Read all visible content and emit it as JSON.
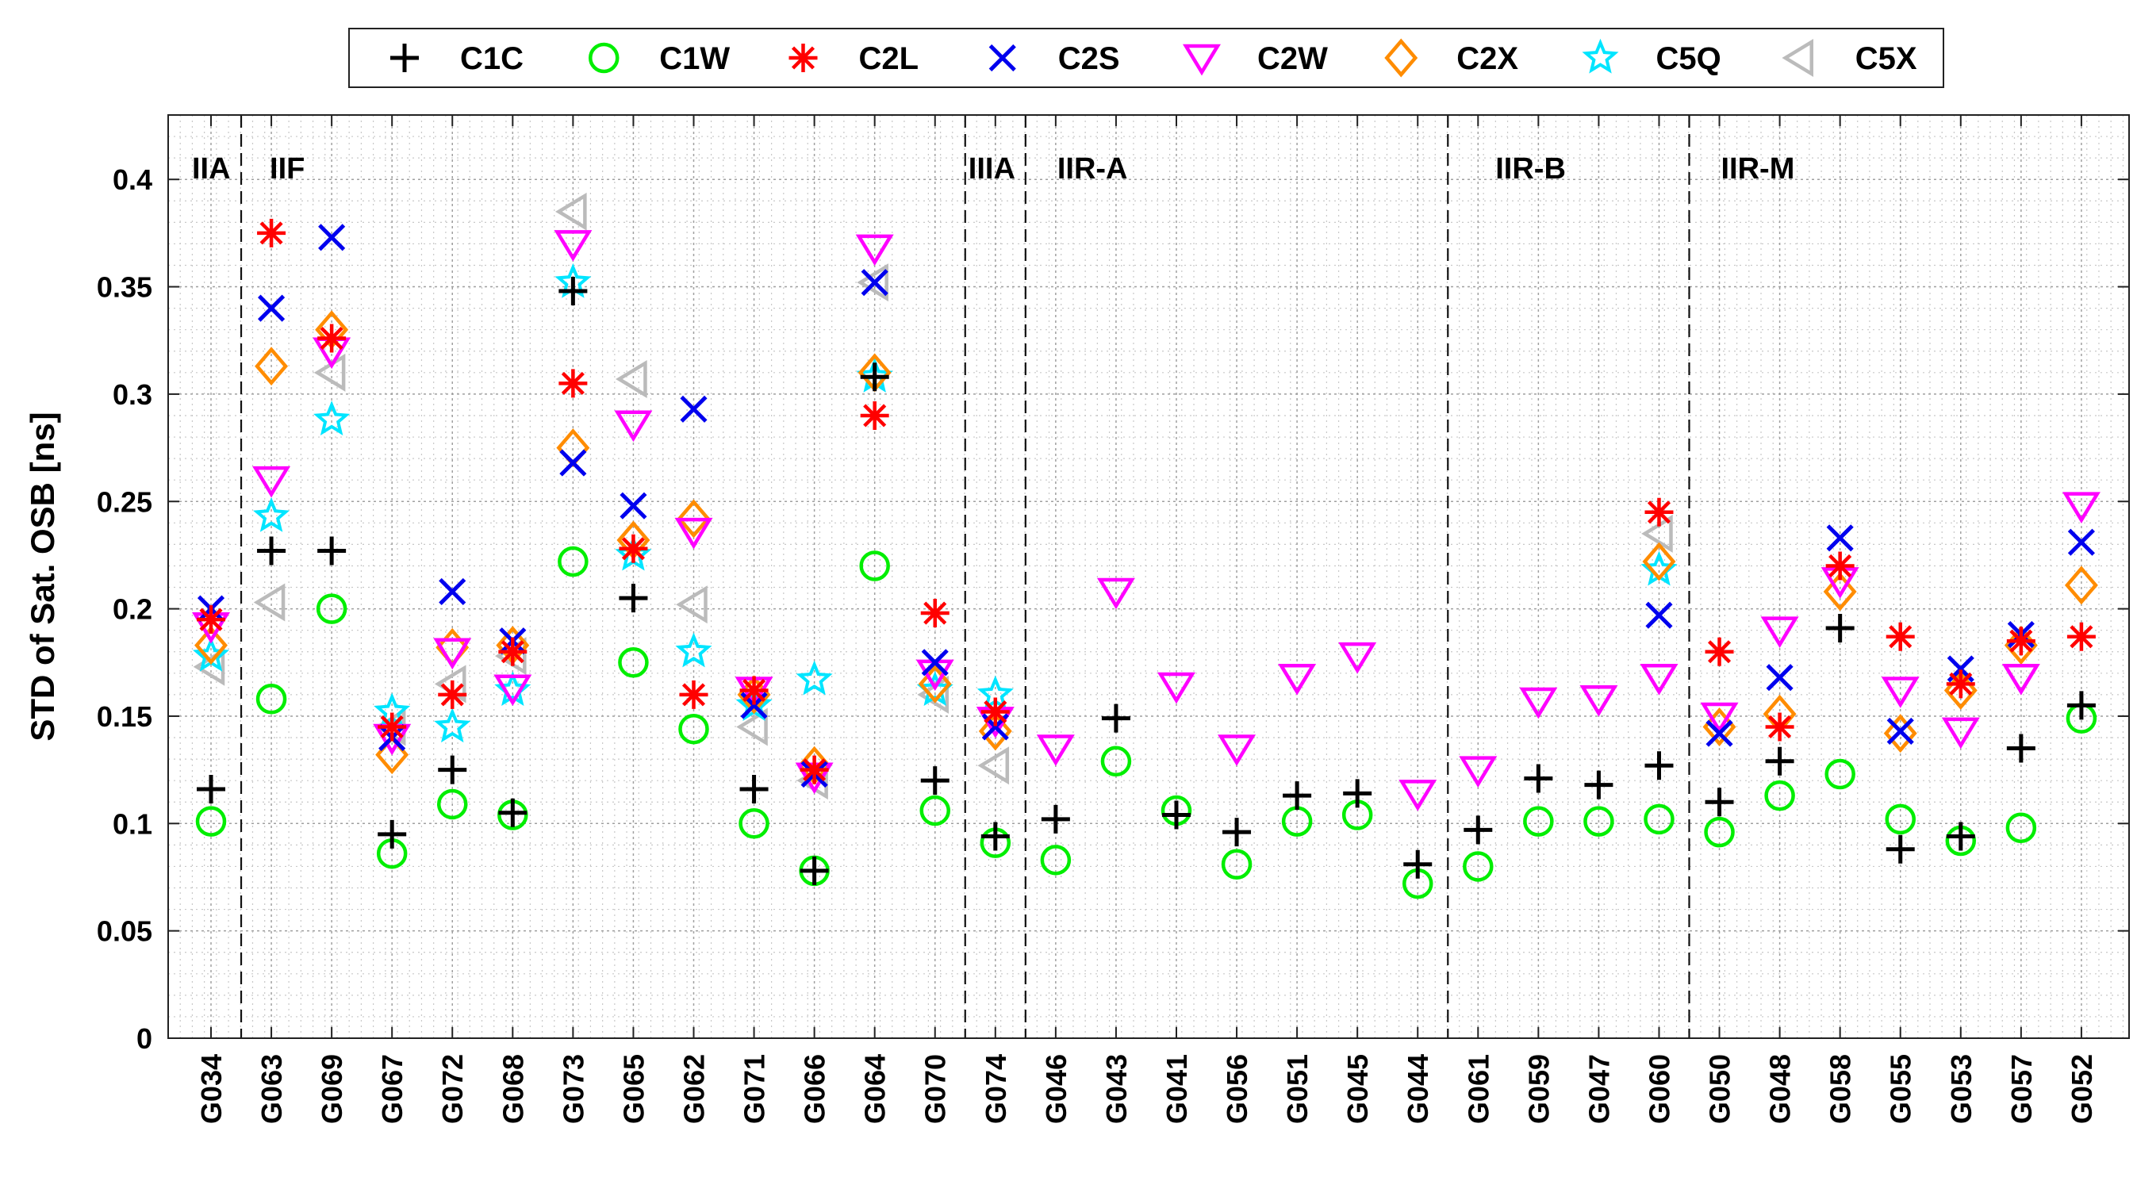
{
  "chart_data": {
    "type": "scatter",
    "title": "",
    "xlabel": "",
    "ylabel": "STD of Sat. OSB [ns]",
    "ylim": [
      0,
      0.43
    ],
    "yticks": [
      0,
      0.05,
      0.1,
      0.15,
      0.2,
      0.25,
      0.3,
      0.35,
      0.4
    ],
    "ytick_labels": [
      "0",
      "0.05",
      "0.1",
      "0.15",
      "0.2",
      "0.25",
      "0.3",
      "0.35",
      "0.4"
    ],
    "grid": true,
    "legend_position": "top-center",
    "categories": [
      "G034",
      "G063",
      "G069",
      "G067",
      "G072",
      "G068",
      "G073",
      "G065",
      "G062",
      "G071",
      "G066",
      "G064",
      "G070",
      "G074",
      "G046",
      "G043",
      "G041",
      "G056",
      "G051",
      "G045",
      "G044",
      "G061",
      "G059",
      "G047",
      "G060",
      "G050",
      "G048",
      "G058",
      "G055",
      "G053",
      "G057",
      "G052"
    ],
    "groups": [
      {
        "label": "IIA",
        "start": 0,
        "end": 0
      },
      {
        "label": "IIF",
        "start": 1,
        "end": 12
      },
      {
        "label": "IIIA",
        "start": 13,
        "end": 13
      },
      {
        "label": "IIR-A",
        "start": 14,
        "end": 20
      },
      {
        "label": "IIR-B",
        "start": 21,
        "end": 24
      },
      {
        "label": "IIR-M",
        "start": 25,
        "end": 31
      }
    ],
    "series": [
      {
        "name": "C1C",
        "marker": "plus",
        "color": "#000000",
        "values": [
          0.116,
          0.227,
          0.227,
          0.095,
          0.125,
          0.105,
          0.348,
          0.205,
          null,
          0.116,
          0.078,
          0.308,
          0.12,
          0.094,
          0.102,
          0.149,
          0.104,
          0.096,
          0.113,
          0.114,
          0.081,
          0.097,
          0.121,
          0.118,
          0.127,
          0.11,
          0.129,
          0.191,
          0.088,
          0.094,
          0.135,
          0.155
        ]
      },
      {
        "name": "C1W",
        "marker": "circle",
        "color": "#00ee00",
        "values": [
          0.101,
          0.158,
          0.2,
          0.086,
          0.109,
          0.104,
          0.222,
          0.175,
          0.144,
          0.1,
          0.078,
          0.22,
          0.106,
          0.091,
          0.083,
          0.129,
          0.106,
          0.081,
          0.101,
          0.104,
          0.072,
          0.08,
          0.101,
          0.101,
          0.102,
          0.096,
          0.113,
          0.123,
          0.102,
          0.092,
          0.098,
          0.149
        ]
      },
      {
        "name": "C2L",
        "marker": "asterisk",
        "color": "#ff0000",
        "values": [
          0.195,
          0.375,
          0.326,
          0.145,
          0.16,
          0.18,
          0.305,
          0.228,
          0.16,
          0.162,
          0.125,
          0.29,
          0.198,
          0.152,
          null,
          null,
          null,
          null,
          null,
          null,
          null,
          null,
          null,
          null,
          0.245,
          0.18,
          0.145,
          0.22,
          0.187,
          0.165,
          0.185,
          0.187
        ]
      },
      {
        "name": "C2S",
        "marker": "x",
        "color": "#0000ee",
        "values": [
          0.2,
          0.34,
          0.373,
          0.14,
          0.208,
          0.185,
          0.268,
          0.248,
          0.293,
          0.155,
          0.123,
          0.352,
          0.175,
          0.145,
          null,
          null,
          null,
          null,
          null,
          null,
          null,
          null,
          null,
          null,
          0.197,
          0.142,
          0.168,
          0.233,
          0.143,
          0.172,
          0.188,
          0.231
        ]
      },
      {
        "name": "C2W",
        "marker": "triangle-down",
        "color": "#ff00ff",
        "values": [
          0.192,
          0.26,
          0.32,
          0.14,
          0.18,
          0.163,
          0.37,
          0.286,
          0.236,
          0.162,
          0.122,
          0.368,
          0.17,
          0.148,
          0.135,
          0.208,
          0.164,
          0.135,
          0.168,
          0.178,
          0.114,
          0.125,
          0.157,
          0.158,
          0.168,
          0.15,
          0.19,
          0.213,
          0.162,
          0.143,
          0.168,
          0.248
        ]
      },
      {
        "name": "C2X",
        "marker": "diamond",
        "color": "#ff8c00",
        "values": [
          0.183,
          0.313,
          0.33,
          0.132,
          0.182,
          0.183,
          0.275,
          0.232,
          0.242,
          0.16,
          0.127,
          0.31,
          0.165,
          0.143,
          null,
          null,
          null,
          null,
          null,
          null,
          null,
          null,
          null,
          null,
          0.222,
          0.145,
          0.151,
          0.208,
          0.142,
          0.162,
          0.183,
          0.211
        ]
      },
      {
        "name": "C5Q",
        "marker": "star",
        "color": "#00e5ff",
        "values": [
          0.178,
          0.243,
          0.288,
          0.152,
          0.145,
          0.162,
          0.352,
          0.225,
          0.18,
          0.155,
          0.167,
          0.308,
          0.162,
          0.16,
          null,
          null,
          null,
          null,
          null,
          null,
          null,
          null,
          null,
          null,
          0.218,
          null,
          null,
          null,
          null,
          null,
          null,
          null
        ]
      },
      {
        "name": "C5X",
        "marker": "triangle-left",
        "color": "#bbbbbb",
        "values": [
          0.173,
          0.203,
          0.31,
          0.145,
          0.165,
          0.178,
          0.385,
          0.307,
          0.202,
          0.145,
          0.12,
          0.352,
          0.16,
          0.127,
          null,
          null,
          null,
          null,
          null,
          null,
          null,
          null,
          null,
          null,
          0.235,
          null,
          null,
          null,
          null,
          null,
          null,
          null
        ]
      }
    ]
  }
}
